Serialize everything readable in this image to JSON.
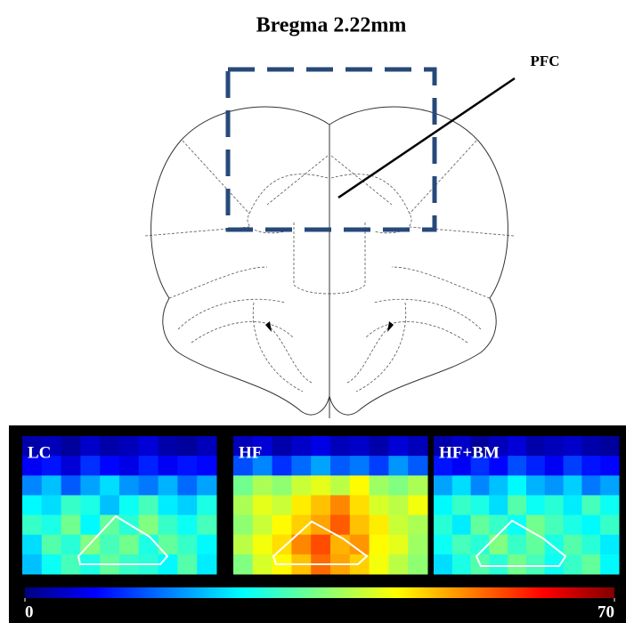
{
  "header": {
    "title": "Bregma 2.22mm",
    "region_label": "PFC"
  },
  "colorbar": {
    "range": [
      0,
      70
    ],
    "ticks": [
      0,
      70
    ]
  },
  "panels": [
    {
      "label": "LC",
      "cells": [
        [
          3,
          4,
          2,
          5,
          3,
          4,
          6,
          3,
          2,
          4
        ],
        [
          8,
          10,
          6,
          12,
          9,
          7,
          11,
          8,
          10,
          9
        ],
        [
          18,
          22,
          15,
          20,
          24,
          19,
          17,
          21,
          16,
          20
        ],
        [
          26,
          24,
          30,
          28,
          22,
          27,
          31,
          25,
          23,
          28
        ],
        [
          30,
          28,
          34,
          26,
          33,
          29,
          35,
          30,
          27,
          31
        ],
        [
          24,
          32,
          29,
          35,
          31,
          34,
          28,
          33,
          30,
          26
        ],
        [
          22,
          27,
          31,
          28,
          33,
          30,
          29,
          26,
          32,
          25
        ]
      ]
    },
    {
      "label": "HF",
      "cells": [
        [
          4,
          6,
          3,
          5,
          7,
          4,
          5,
          3,
          6,
          4
        ],
        [
          14,
          18,
          12,
          16,
          20,
          15,
          17,
          13,
          19,
          15
        ],
        [
          34,
          38,
          36,
          40,
          42,
          39,
          44,
          37,
          35,
          38
        ],
        [
          38,
          42,
          40,
          45,
          48,
          52,
          46,
          41,
          39,
          43
        ],
        [
          36,
          40,
          44,
          47,
          50,
          55,
          48,
          45,
          40,
          38
        ],
        [
          39,
          43,
          46,
          52,
          56,
          49,
          51,
          44,
          42,
          37
        ],
        [
          35,
          41,
          44,
          48,
          54,
          50,
          47,
          43,
          39,
          36
        ]
      ]
    },
    {
      "label": "HF+BM",
      "cells": [
        [
          3,
          5,
          2,
          4,
          6,
          3,
          4,
          5,
          3,
          2
        ],
        [
          10,
          8,
          12,
          9,
          14,
          11,
          8,
          13,
          10,
          9
        ],
        [
          20,
          24,
          18,
          22,
          26,
          21,
          19,
          23,
          17,
          20
        ],
        [
          26,
          30,
          28,
          24,
          32,
          27,
          29,
          25,
          31,
          27
        ],
        [
          29,
          25,
          33,
          30,
          27,
          34,
          31,
          28,
          26,
          30
        ],
        [
          27,
          31,
          29,
          35,
          30,
          33,
          28,
          32,
          29,
          25
        ],
        [
          24,
          28,
          32,
          29,
          34,
          31,
          27,
          30,
          33,
          26
        ]
      ]
    }
  ]
}
